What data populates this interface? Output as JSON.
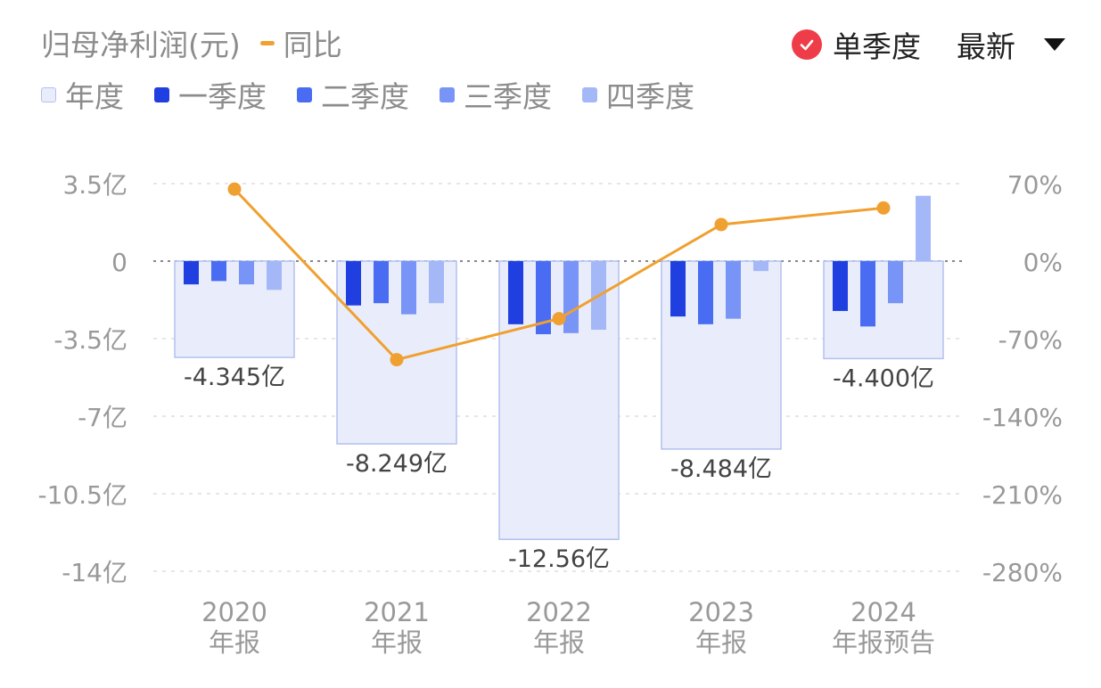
{
  "header": {
    "title": "归母净利润(元)",
    "yoy_label": "同比"
  },
  "controls": {
    "single_quarter_label": "单季度",
    "latest_label": "最新"
  },
  "legend": [
    "年度",
    "一季度",
    "二季度",
    "三季度",
    "四季度"
  ],
  "colors": {
    "annual_fill": "#e9edfb",
    "annual_stroke": "#b3c0ef",
    "q1": "#1f3fe0",
    "q2": "#4a6cf2",
    "q3": "#7794f6",
    "q4": "#a4b8f8",
    "yoy": "#f0a030",
    "axis_text": "#999999",
    "grid": "#dddddd",
    "check": "#ee3d48"
  },
  "chart_data": {
    "type": "bar",
    "categories": [
      "2020 年报",
      "2021 年报",
      "2022 年报",
      "2023 年报",
      "2024 年报预告"
    ],
    "category_labels": [
      [
        "2020",
        "年报"
      ],
      [
        "2021",
        "年报"
      ],
      [
        "2022",
        "年报"
      ],
      [
        "2023",
        "年报"
      ],
      [
        "2024",
        "年报预告"
      ]
    ],
    "annual": [
      -4.345,
      -8.249,
      -12.56,
      -8.484,
      -4.4
    ],
    "annual_labels": [
      "-4.345亿",
      "-8.249亿",
      "-12.56亿",
      "-8.484亿",
      "-4.400亿"
    ],
    "series": [
      {
        "name": "一季度",
        "values": [
          -1.05,
          -2.0,
          -2.85,
          -2.5,
          -2.25
        ]
      },
      {
        "name": "二季度",
        "values": [
          -0.9,
          -1.9,
          -3.3,
          -2.85,
          -2.95
        ]
      },
      {
        "name": "三季度",
        "values": [
          -1.05,
          -2.4,
          -3.25,
          -2.6,
          -1.9
        ]
      },
      {
        "name": "四季度",
        "values": [
          -1.3,
          -1.9,
          -3.1,
          -0.45,
          2.95
        ]
      }
    ],
    "yoy": [
      65,
      -89,
      -52,
      33,
      48
    ],
    "ylim": [
      -14,
      3.5
    ],
    "yticks": [
      3.5,
      0,
      -3.5,
      -7,
      -10.5,
      -14
    ],
    "ytick_labels": [
      "3.5亿",
      "0",
      "-3.5亿",
      "-7亿",
      "-10.5亿",
      "-14亿"
    ],
    "y2lim": [
      -280,
      70
    ],
    "y2tick_labels": [
      "70%",
      "0%",
      "-70%",
      "-140%",
      "-210%",
      "-280%"
    ]
  }
}
